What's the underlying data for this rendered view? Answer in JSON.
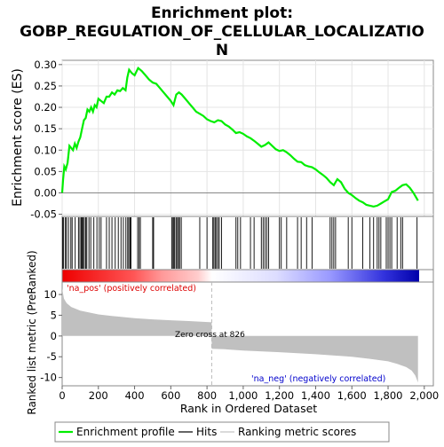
{
  "chart_data": {
    "type": "line",
    "title_line1": "Enrichment plot:",
    "title_line2": "GOBP_REGULATION_OF_CELLULAR_LOCALIZATIO",
    "title_line3": "N",
    "xlabel": "Rank in Ordered Dataset",
    "es_ylabel": "Enrichment score (ES)",
    "metric_ylabel": "Ranked list metric (PreRanked)",
    "xlim": [
      0,
      2050
    ],
    "es_ylim": [
      -0.055,
      0.31
    ],
    "metric_ylim": [
      -12,
      13
    ],
    "x_ticks": [
      0,
      200,
      400,
      600,
      800,
      1000,
      1200,
      1400,
      1600,
      1800,
      2000
    ],
    "x_tick_labels": [
      "0",
      "200",
      "400",
      "600",
      "800",
      "1,000",
      "1,200",
      "1,400",
      "1,600",
      "1,800",
      "2,000"
    ],
    "es_ticks": [
      -0.05,
      0.0,
      0.05,
      0.1,
      0.15,
      0.2,
      0.25,
      0.3
    ],
    "es_tick_labels": [
      "-0.05",
      "0.00",
      "0.05",
      "0.10",
      "0.15",
      "0.20",
      "0.25",
      "0.30"
    ],
    "metric_ticks": [
      -10,
      -5,
      0,
      5,
      10
    ],
    "metric_tick_labels": [
      "-10",
      "-5",
      "0",
      "5",
      "10"
    ],
    "zero_cross_rank": 826,
    "zero_cross_label": "Zero cross at 826",
    "pos_label": "'na_pos' (positively correlated)",
    "neg_label": "'na_neg' (negatively correlated)",
    "n_ranks": 1965,
    "series": [
      {
        "name": "Enrichment profile",
        "color": "#00ee00",
        "x": [
          0,
          5,
          12,
          20,
          30,
          40,
          50,
          60,
          70,
          80,
          90,
          100,
          110,
          120,
          130,
          140,
          150,
          160,
          170,
          180,
          190,
          200,
          215,
          230,
          245,
          260,
          275,
          290,
          305,
          320,
          335,
          350,
          360,
          370,
          385,
          400,
          420,
          440,
          460,
          480,
          500,
          520,
          540,
          560,
          580,
          600,
          615,
          630,
          645,
          660,
          680,
          700,
          720,
          740,
          760,
          780,
          800,
          820,
          840,
          860,
          880,
          900,
          920,
          940,
          960,
          980,
          1000,
          1020,
          1040,
          1060,
          1080,
          1100,
          1120,
          1140,
          1160,
          1180,
          1200,
          1220,
          1240,
          1260,
          1280,
          1300,
          1320,
          1340,
          1360,
          1380,
          1400,
          1420,
          1440,
          1460,
          1480,
          1500,
          1520,
          1540,
          1560,
          1580,
          1600,
          1620,
          1640,
          1660,
          1680,
          1700,
          1720,
          1740,
          1760,
          1780,
          1800,
          1820,
          1840,
          1860,
          1880,
          1900,
          1920,
          1940,
          1965
        ],
        "y": [
          0.0,
          0.03,
          0.062,
          0.055,
          0.07,
          0.11,
          0.105,
          0.1,
          0.115,
          0.105,
          0.12,
          0.13,
          0.15,
          0.17,
          0.175,
          0.195,
          0.19,
          0.2,
          0.19,
          0.205,
          0.2,
          0.22,
          0.215,
          0.21,
          0.225,
          0.225,
          0.235,
          0.23,
          0.24,
          0.238,
          0.245,
          0.24,
          0.27,
          0.288,
          0.28,
          0.275,
          0.292,
          0.285,
          0.275,
          0.265,
          0.258,
          0.255,
          0.245,
          0.235,
          0.225,
          0.215,
          0.205,
          0.23,
          0.235,
          0.23,
          0.22,
          0.21,
          0.2,
          0.19,
          0.185,
          0.18,
          0.172,
          0.168,
          0.165,
          0.17,
          0.168,
          0.16,
          0.155,
          0.148,
          0.14,
          0.142,
          0.138,
          0.132,
          0.128,
          0.122,
          0.115,
          0.108,
          0.112,
          0.118,
          0.11,
          0.102,
          0.098,
          0.1,
          0.095,
          0.088,
          0.08,
          0.073,
          0.072,
          0.065,
          0.062,
          0.06,
          0.055,
          0.048,
          0.042,
          0.035,
          0.025,
          0.018,
          0.032,
          0.025,
          0.01,
          0.0,
          -0.005,
          -0.012,
          -0.018,
          -0.022,
          -0.028,
          -0.03,
          -0.032,
          -0.03,
          -0.025,
          -0.02,
          -0.015,
          0.002,
          0.005,
          0.012,
          0.018,
          0.02,
          0.012,
          0.0,
          -0.018
        ]
      },
      {
        "name": "Hits",
        "color": "#000000",
        "hit_ranks": [
          3,
          8,
          18,
          24,
          35,
          48,
          55,
          72,
          90,
          98,
          105,
          110,
          116,
          122,
          130,
          136,
          148,
          158,
          175,
          192,
          205,
          215,
          245,
          260,
          275,
          293,
          310,
          325,
          338,
          352,
          362,
          368,
          375,
          380,
          417,
          425,
          432,
          500,
          505,
          605,
          612,
          617,
          622,
          630,
          638,
          642,
          650,
          658,
          760,
          800,
          832,
          838,
          845,
          852,
          860,
          868,
          880,
          960,
          970,
          985,
          1040,
          1060,
          1100,
          1110,
          1120,
          1130,
          1140,
          1200,
          1210,
          1240,
          1300,
          1320,
          1350,
          1380,
          1480,
          1490,
          1500,
          1510,
          1580,
          1600,
          1660,
          1700,
          1720,
          1740,
          1750,
          1760,
          1790,
          1800,
          1810,
          1820,
          1850,
          1870,
          1880,
          1960
        ]
      },
      {
        "name": "Ranking metric scores",
        "color": "#c0c0c0",
        "x": [
          0,
          10,
          25,
          50,
          100,
          200,
          300,
          400,
          500,
          600,
          700,
          826,
          826,
          900,
          1000,
          1200,
          1400,
          1600,
          1700,
          1800,
          1850,
          1900,
          1930,
          1950,
          1965
        ],
        "y": [
          11.5,
          9.0,
          7.9,
          7.0,
          6.1,
          5.2,
          4.7,
          4.3,
          4.0,
          3.8,
          3.6,
          3.3,
          -3.1,
          -3.2,
          -3.5,
          -3.9,
          -4.4,
          -5.0,
          -5.5,
          -6.1,
          -6.7,
          -7.5,
          -8.3,
          -9.5,
          -11.2
        ]
      }
    ],
    "bar_gradient_stops": [
      "#ee0000",
      "#ff9999",
      "#ffdddd",
      "#ffffff",
      "#ddddff",
      "#9999ff",
      "#0000cc"
    ]
  },
  "legend": {
    "items": [
      {
        "label": "Enrichment profile",
        "color": "#00ee00"
      },
      {
        "label": "Hits",
        "color": "#000000"
      },
      {
        "label": "Ranking metric scores",
        "color": "#c0c0c0"
      }
    ]
  }
}
